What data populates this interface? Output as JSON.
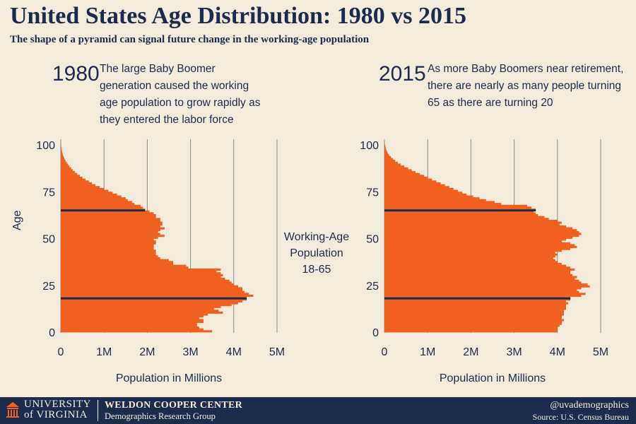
{
  "title": "United States Age Distribution: 1980 vs 2015",
  "subtitle": "The shape of a pyramid can signal future change in the working-age population",
  "center_label": [
    "Working-Age",
    "Population",
    "18-65"
  ],
  "footer": {
    "uva_line1": "UNIVERSITY",
    "uva_line2": "of VIRGINIA",
    "center_name": "WELDON COOPER CENTER",
    "group_name": "Demographics Research Group",
    "handle": "@uvademographics",
    "source": "Source: U.S. Census Bureau"
  },
  "colors": {
    "bar": "#f0601e",
    "background": "#f3ecdc",
    "text": "#1c2b4d",
    "grid": "#8a8a8a",
    "marker": "#1c2b4d"
  },
  "chart_data": [
    {
      "type": "bar",
      "orientation": "horizontal",
      "year": "1980",
      "annotation": "The large Baby Boomer generation caused the working age population to grow rapidly as they entered the labor force",
      "ylabel": "Age",
      "xlabel": "Population in Millions",
      "xlim": [
        0,
        5
      ],
      "ylim": [
        0,
        100
      ],
      "x_ticks": [
        "0",
        "1M",
        "2M",
        "3M",
        "4M",
        "5M"
      ],
      "y_ticks": [
        "0",
        "25",
        "50",
        "75",
        "100"
      ],
      "reference_lines": [
        18,
        65
      ],
      "ages": [
        0,
        1,
        2,
        3,
        4,
        5,
        6,
        7,
        8,
        9,
        10,
        11,
        12,
        13,
        14,
        15,
        16,
        17,
        18,
        19,
        20,
        21,
        22,
        23,
        24,
        25,
        26,
        27,
        28,
        29,
        30,
        31,
        32,
        33,
        34,
        35,
        36,
        37,
        38,
        39,
        40,
        41,
        42,
        43,
        44,
        45,
        46,
        47,
        48,
        49,
        50,
        51,
        52,
        53,
        54,
        55,
        56,
        57,
        58,
        59,
        60,
        61,
        62,
        63,
        64,
        65,
        66,
        67,
        68,
        69,
        70,
        71,
        72,
        73,
        74,
        75,
        76,
        77,
        78,
        79,
        80,
        81,
        82,
        83,
        84,
        85,
        86,
        87,
        88,
        89,
        90,
        91,
        92,
        93,
        94,
        95,
        96,
        97,
        98,
        99,
        100
      ],
      "values": [
        3.5,
        3.3,
        3.2,
        3.15,
        3.15,
        3.3,
        3.3,
        3.2,
        3.3,
        3.4,
        3.75,
        3.65,
        3.55,
        3.7,
        3.95,
        4.1,
        4.2,
        4.3,
        4.3,
        4.45,
        4.35,
        4.25,
        4.2,
        4.2,
        4.1,
        4.0,
        3.95,
        3.9,
        3.8,
        3.7,
        3.75,
        3.7,
        3.6,
        3.7,
        2.95,
        2.9,
        2.6,
        2.6,
        2.5,
        2.3,
        2.25,
        2.2,
        2.2,
        2.2,
        2.15,
        2.15,
        2.15,
        2.2,
        2.2,
        2.15,
        2.25,
        2.4,
        2.3,
        2.25,
        2.3,
        2.4,
        2.3,
        2.35,
        2.35,
        2.3,
        2.3,
        2.2,
        2.2,
        2.15,
        2.05,
        1.95,
        1.9,
        1.85,
        1.7,
        1.65,
        1.55,
        1.5,
        1.4,
        1.3,
        1.2,
        1.1,
        1.0,
        0.9,
        0.8,
        0.72,
        0.65,
        0.57,
        0.5,
        0.44,
        0.38,
        0.33,
        0.28,
        0.24,
        0.2,
        0.17,
        0.14,
        0.11,
        0.09,
        0.07,
        0.05,
        0.04,
        0.03,
        0.02,
        0.015,
        0.01,
        0.005
      ]
    },
    {
      "type": "bar",
      "orientation": "horizontal",
      "year": "2015",
      "annotation": "As more Baby Boomers near retirement, there are nearly as many people turning 65 as there are turning 20",
      "ylabel": "",
      "xlabel": "Population in Millions",
      "xlim": [
        0,
        5
      ],
      "ylim": [
        0,
        100
      ],
      "x_ticks": [
        "0",
        "1M",
        "2M",
        "3M",
        "4M",
        "5M"
      ],
      "y_ticks": [
        "0",
        "25",
        "50",
        "75",
        "100"
      ],
      "reference_lines": [
        18,
        65
      ],
      "ages": [
        0,
        1,
        2,
        3,
        4,
        5,
        6,
        7,
        8,
        9,
        10,
        11,
        12,
        13,
        14,
        15,
        16,
        17,
        18,
        19,
        20,
        21,
        22,
        23,
        24,
        25,
        26,
        27,
        28,
        29,
        30,
        31,
        32,
        33,
        34,
        35,
        36,
        37,
        38,
        39,
        40,
        41,
        42,
        43,
        44,
        45,
        46,
        47,
        48,
        49,
        50,
        51,
        52,
        53,
        54,
        55,
        56,
        57,
        58,
        59,
        60,
        61,
        62,
        63,
        64,
        65,
        66,
        67,
        68,
        69,
        70,
        71,
        72,
        73,
        74,
        75,
        76,
        77,
        78,
        79,
        80,
        81,
        82,
        83,
        84,
        85,
        86,
        87,
        88,
        89,
        90,
        91,
        92,
        93,
        94,
        95,
        96,
        97,
        98,
        99,
        100
      ],
      "values": [
        4.0,
        4.0,
        4.0,
        4.05,
        4.1,
        4.1,
        4.15,
        4.1,
        4.1,
        4.15,
        4.15,
        4.15,
        4.2,
        4.2,
        4.2,
        4.25,
        4.2,
        4.3,
        4.3,
        4.55,
        4.65,
        4.5,
        4.45,
        4.55,
        4.75,
        4.7,
        4.55,
        4.5,
        4.4,
        4.45,
        4.35,
        4.3,
        4.3,
        4.4,
        4.3,
        4.2,
        4.1,
        4.0,
        3.95,
        3.9,
        3.95,
        4.0,
        3.95,
        4.1,
        4.3,
        4.45,
        4.4,
        4.3,
        4.1,
        4.2,
        4.35,
        4.5,
        4.55,
        4.5,
        4.45,
        4.35,
        4.2,
        4.05,
        4.1,
        4.0,
        3.8,
        3.7,
        3.55,
        3.5,
        3.45,
        3.5,
        3.4,
        3.3,
        2.7,
        2.55,
        2.35,
        2.2,
        2.05,
        1.9,
        1.8,
        1.7,
        1.6,
        1.5,
        1.4,
        1.3,
        1.2,
        1.1,
        1.0,
        0.92,
        0.82,
        0.72,
        0.63,
        0.55,
        0.46,
        0.38,
        0.31,
        0.25,
        0.2,
        0.15,
        0.11,
        0.08,
        0.06,
        0.04,
        0.03,
        0.02,
        0.01
      ]
    }
  ]
}
